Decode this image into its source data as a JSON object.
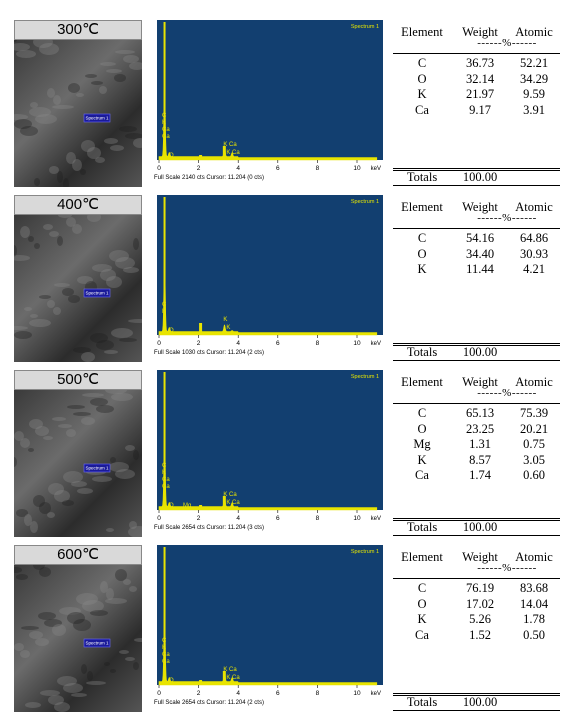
{
  "panels": [
    {
      "label": "300℃",
      "image_label": "Spectrum 1",
      "spectrum": {
        "title": "Spectrum 1",
        "xticks": [
          "0",
          "2",
          "4",
          "6",
          "8",
          "10"
        ],
        "unit": "keV",
        "footer": "Full Scale 2140 cts Cursor: 11.204 (0 cts)",
        "left_labels": [
          "C",
          "K",
          "Ca",
          "Ca"
        ],
        "base_labels": [
          "O"
        ],
        "mid_labels": [
          "K Ca",
          "K Ca"
        ]
      },
      "table": {
        "header": [
          "Element",
          "Weight",
          "Atomic"
        ],
        "unit": "------%------",
        "rows": [
          [
            "C",
            "36.73",
            "52.21"
          ],
          [
            "O",
            "32.14",
            "34.29"
          ],
          [
            "K",
            "21.97",
            "9.59"
          ],
          [
            "Ca",
            "9.17",
            "3.91"
          ]
        ],
        "totals": [
          "Totals",
          "100.00"
        ]
      }
    },
    {
      "label": "400℃",
      "image_label": "Spectrum 1",
      "spectrum": {
        "title": "Spectrum 1",
        "xticks": [
          "0",
          "2",
          "4",
          "6",
          "8",
          "10"
        ],
        "unit": "keV",
        "footer": "Full Scale 1030 cts Cursor: 11.204 (2 cts)",
        "left_labels": [
          "C",
          "K"
        ],
        "base_labels": [
          "O"
        ],
        "mid_labels": [
          "K",
          "K"
        ]
      },
      "table": {
        "header": [
          "Element",
          "Weight",
          "Atomic"
        ],
        "unit": "------%------",
        "rows": [
          [
            "C",
            "54.16",
            "64.86"
          ],
          [
            "O",
            "34.40",
            "30.93"
          ],
          [
            "K",
            "11.44",
            "4.21"
          ]
        ],
        "totals": [
          "Totals",
          "100.00"
        ]
      }
    },
    {
      "label": "500℃",
      "image_label": "Spectrum 1",
      "spectrum": {
        "title": "Spectrum 1",
        "xticks": [
          "0",
          "2",
          "4",
          "6",
          "8",
          "10"
        ],
        "unit": "keV",
        "footer": "Full Scale 2654 cts Cursor: 11.204 (3 cts)",
        "left_labels": [
          "C",
          "K",
          "Ca",
          "Ca"
        ],
        "base_labels": [
          "O",
          "Mg"
        ],
        "mid_labels": [
          "K Ca",
          "K Ca"
        ]
      },
      "table": {
        "header": [
          "Element",
          "Weight",
          "Atomic"
        ],
        "unit": "------%------",
        "rows": [
          [
            "C",
            "65.13",
            "75.39"
          ],
          [
            "O",
            "23.25",
            "20.21"
          ],
          [
            "Mg",
            "1.31",
            "0.75"
          ],
          [
            "K",
            "8.57",
            "3.05"
          ],
          [
            "Ca",
            "1.74",
            "0.60"
          ]
        ],
        "totals": [
          "Totals",
          "100.00"
        ]
      }
    },
    {
      "label": "600℃",
      "image_label": "Spectrum 1",
      "spectrum": {
        "title": "Spectrum 1",
        "xticks": [
          "0",
          "2",
          "4",
          "6",
          "8",
          "10"
        ],
        "unit": "keV",
        "footer": "Full Scale 2654 cts Cursor: 11.204 (2 cts)",
        "left_labels": [
          "C",
          "K",
          "Ca",
          "Ca"
        ],
        "base_labels": [
          "O"
        ],
        "mid_labels": [
          "K Ca",
          "K Ca"
        ]
      },
      "table": {
        "header": [
          "Element",
          "Weight",
          "Atomic"
        ],
        "unit": "------%------",
        "rows": [
          [
            "C",
            "76.19",
            "83.68"
          ],
          [
            "O",
            "17.02",
            "14.04"
          ],
          [
            "K",
            "5.26",
            "1.78"
          ],
          [
            "Ca",
            "1.52",
            "0.50"
          ]
        ],
        "totals": [
          "Totals",
          "100.00"
        ]
      }
    }
  ]
}
